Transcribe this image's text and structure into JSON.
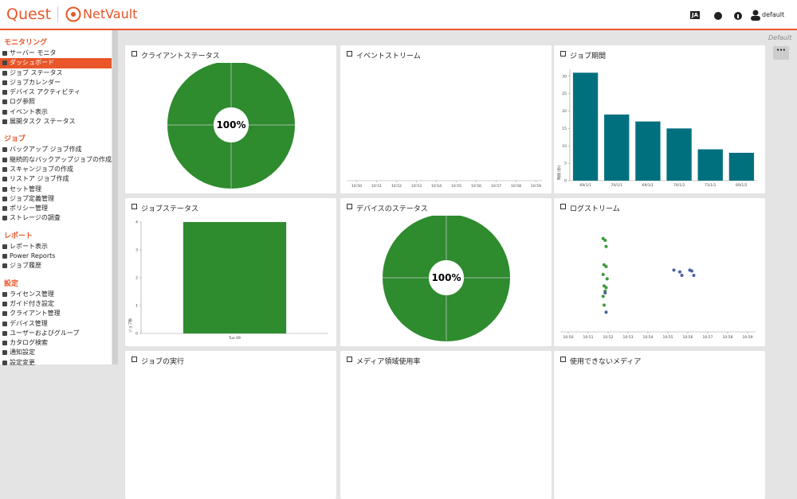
{
  "header": {
    "brand": "Quest",
    "product": "NetVault",
    "language": "JA",
    "user": "default"
  },
  "view_label": "Default",
  "active_item": {
    "section": 0,
    "item": 1
  },
  "sidebar": [
    {
      "title": "モニタリング",
      "items": [
        "サーバー モニタ",
        "ダッシュボード",
        "ジョブ ステータス",
        "ジョブカレンダー",
        "デバイス アクティビティ",
        "ログ参照",
        "イベント表示",
        "展開タスク ステータス"
      ]
    },
    {
      "title": "ジョブ",
      "items": [
        "バックアップ ジョブ作成",
        "継続的なバックアップジョブの作成",
        "スキャンジョブの作成",
        "リストア ジョブ作成",
        "セット管理",
        "ジョブ定義管理",
        "ポリシー管理",
        "ストレージの調査"
      ]
    },
    {
      "title": "レポート",
      "items": [
        "レポート表示",
        "Power Reports",
        "ジョブ履歴"
      ]
    },
    {
      "title": "設定",
      "items": [
        "ライセンス管理",
        "ガイド付き設定",
        "クライアント管理",
        "デバイス管理",
        "ユーザーおよびグループ",
        "カタログ検索",
        "通知設定",
        "設定変更"
      ]
    }
  ],
  "panels": [
    {
      "title": "クライアントステータス",
      "chart": {
        "type": "donut",
        "values": [
          100
        ],
        "value_labels": [
          "100%"
        ],
        "color": "#2e8b2e"
      }
    },
    {
      "title": "イベントストリーム",
      "chart": {
        "type": "timeline",
        "xlim": [
          49.5,
          59.3
        ],
        "xticks": [
          {
            "value": 50,
            "label": "10:50"
          },
          {
            "value": 51,
            "label": "10:51"
          },
          {
            "value": 52,
            "label": "10:52"
          },
          {
            "value": 53,
            "label": "10:53"
          },
          {
            "value": 54,
            "label": "10:54"
          },
          {
            "value": 55,
            "label": "10:55"
          },
          {
            "value": 56,
            "label": "10:56"
          },
          {
            "value": 57,
            "label": "10:57"
          },
          {
            "value": 58,
            "label": "10:58"
          },
          {
            "value": 59,
            "label": "10:59"
          }
        ]
      }
    },
    {
      "title": "ジョブ期間",
      "chart": {
        "type": "bar",
        "categories": [
          "69/1/1",
          "70/1/1",
          "69/1/1",
          "70/1/2",
          "71/1/1",
          "69/1/2"
        ],
        "values": [
          31,
          19,
          17,
          15,
          9,
          8
        ],
        "ylim": [
          0,
          32
        ],
        "yticks": [
          0,
          5,
          10,
          15,
          20,
          25,
          30
        ],
        "y_label": "時間 (秒)",
        "color": "#00707f"
      }
    },
    {
      "title": "ジョブステータス",
      "chart": {
        "type": "bar",
        "categories": [
          "Tue 09"
        ],
        "values": [
          4
        ],
        "ylim": [
          0,
          4
        ],
        "yticks": [
          0,
          1,
          2,
          3,
          4
        ],
        "y_label": "ジョブ数",
        "color": "#2e8b2e"
      }
    },
    {
      "title": "デバイスのステータス",
      "chart": {
        "type": "donut",
        "values": [
          100
        ],
        "value_labels": [
          "100%"
        ],
        "color": "#2e8b2e"
      }
    },
    {
      "title": "ログストリーム",
      "chart": {
        "type": "scatter",
        "xlim": [
          49.6,
          59.4
        ],
        "ylim": [
          0,
          10
        ],
        "xticks": [
          {
            "value": 50,
            "label": "10:50"
          },
          {
            "value": 51,
            "label": "10:51"
          },
          {
            "value": 52,
            "label": "10:52"
          },
          {
            "value": 53,
            "label": "10:53"
          },
          {
            "value": 54,
            "label": "10:54"
          },
          {
            "value": 55,
            "label": "10:55"
          },
          {
            "value": 56,
            "label": "10:56"
          },
          {
            "value": 57,
            "label": "10:57"
          },
          {
            "value": 58,
            "label": "10:58"
          },
          {
            "value": 59,
            "label": "10:59"
          }
        ],
        "series": [
          {
            "color": "#3a9a3a",
            "x": [
              51.75,
              51.85,
              51.9,
              51.8,
              51.9,
              51.75,
              51.8,
              51.9,
              51.85,
              51.75,
              51.8,
              51.95
            ],
            "y": [
              9.2,
              9.0,
              8.3,
              6.2,
              6.0,
              5.1,
              3.8,
              3.6,
              3.2,
              2.6,
              1.6,
              4.6
            ]
          },
          {
            "color": "#4a5fa8",
            "x": [
              51.9,
              55.3,
              55.6,
              55.7,
              56.1,
              56.3,
              56.2,
              51.85
            ],
            "y": [
              0.8,
              5.6,
              5.4,
              5.0,
              5.6,
              5.0,
              5.5,
              3.0
            ]
          }
        ]
      }
    },
    {
      "title": "ジョブの実行"
    },
    {
      "title": "メディア領域使用率"
    },
    {
      "title": "使用できないメディア"
    }
  ]
}
